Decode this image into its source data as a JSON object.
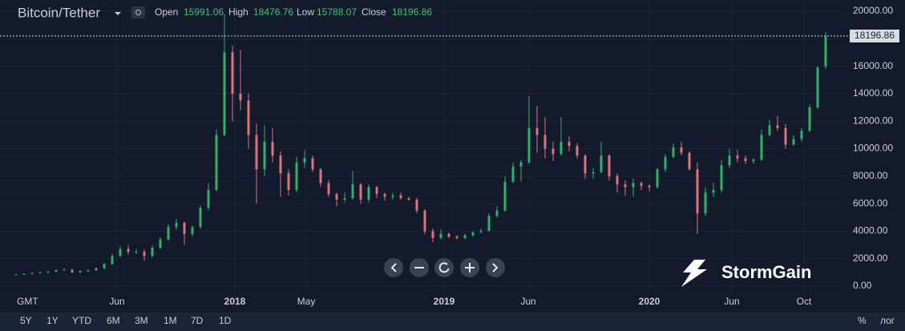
{
  "header": {
    "symbol": "Bitcoin/Tether",
    "labels": [
      "Open",
      "High",
      "Low",
      "Close"
    ]
  },
  "chart_data": {
    "type": "candlestick",
    "up_color": "#2fb36a",
    "down_color": "#e0727b",
    "timezone": "GMT",
    "xlim": [
      -0.5,
      103.5
    ],
    "xticks": [
      {
        "value": 12.6,
        "label": "Jun"
      },
      {
        "value": 27.3,
        "label": "2018"
      },
      {
        "value": 36.2,
        "label": "May"
      },
      {
        "value": 53.4,
        "label": "2019"
      },
      {
        "value": 63.9,
        "label": "Jun"
      },
      {
        "value": 79.0,
        "label": "2020"
      },
      {
        "value": 89.3,
        "label": "Jun"
      },
      {
        "value": 98.3,
        "label": "Oct"
      }
    ],
    "ylim": [
      0,
      20000
    ],
    "yticks": [
      {
        "value": 0,
        "label": "0.00"
      },
      {
        "value": 2000,
        "label": "2000.00"
      },
      {
        "value": 4000,
        "label": "4000.00"
      },
      {
        "value": 6000,
        "label": "6000.00"
      },
      {
        "value": 8000,
        "label": "8000.00"
      },
      {
        "value": 10000,
        "label": "10000.00"
      },
      {
        "value": 12000,
        "label": "12000.00"
      },
      {
        "value": 14000,
        "label": "14000.00"
      },
      {
        "value": 16000,
        "label": "16000.00"
      },
      {
        "value": 18000,
        "label": "18000.00"
      },
      {
        "value": 20000,
        "label": "20000.00"
      }
    ],
    "ohlc": [
      [
        800,
        880,
        780,
        850
      ],
      [
        850,
        930,
        820,
        900
      ],
      [
        900,
        990,
        870,
        950
      ],
      [
        950,
        1050,
        920,
        1000
      ],
      [
        1000,
        1100,
        960,
        1050
      ],
      [
        1050,
        1200,
        1020,
        1150
      ],
      [
        1150,
        1280,
        1120,
        1200
      ],
      [
        1200,
        1250,
        950,
        1000
      ],
      [
        1000,
        1150,
        960,
        1100
      ],
      [
        1100,
        1200,
        1050,
        1150
      ],
      [
        1150,
        1380,
        1120,
        1300
      ],
      [
        1300,
        1700,
        1250,
        1600
      ],
      [
        1600,
        2350,
        1550,
        2200
      ],
      [
        2200,
        2900,
        2100,
        2700
      ],
      [
        2700,
        2980,
        2300,
        2500
      ],
      [
        2500,
        2700,
        2350,
        2500
      ],
      [
        2500,
        2650,
        1850,
        2200
      ],
      [
        2200,
        2950,
        2100,
        2800
      ],
      [
        2800,
        3550,
        2700,
        3400
      ],
      [
        3400,
        4500,
        3300,
        4300
      ],
      [
        4300,
        4900,
        4100,
        4600
      ],
      [
        4600,
        4700,
        3000,
        3800
      ],
      [
        3800,
        4400,
        3600,
        4300
      ],
      [
        4300,
        5850,
        4200,
        5700
      ],
      [
        5700,
        7500,
        5500,
        7000
      ],
      [
        7000,
        11400,
        6900,
        11000
      ],
      [
        11000,
        19800,
        10900,
        17000
      ],
      [
        17000,
        17500,
        12000,
        14000
      ],
      [
        14000,
        17200,
        12800,
        13500
      ],
      [
        13500,
        14000,
        10000,
        11000
      ],
      [
        11000,
        11800,
        6000,
        8500
      ],
      [
        8500,
        11700,
        8000,
        10500
      ],
      [
        10500,
        11500,
        9000,
        9500
      ],
      [
        9500,
        9800,
        6500,
        8200
      ],
      [
        8200,
        8500,
        6600,
        7000
      ],
      [
        7000,
        9400,
        6800,
        9000
      ],
      [
        9000,
        9900,
        8600,
        9300
      ],
      [
        9300,
        9500,
        8300,
        8500
      ],
      [
        8500,
        8600,
        7200,
        7500
      ],
      [
        7500,
        7700,
        6500,
        6700
      ],
      [
        6700,
        6800,
        5800,
        6300
      ],
      [
        6300,
        6800,
        6100,
        6400
      ],
      [
        6400,
        8400,
        6300,
        7400
      ],
      [
        7400,
        7500,
        6000,
        6300
      ],
      [
        6300,
        7400,
        6100,
        7200
      ],
      [
        7200,
        7300,
        6400,
        6700
      ],
      [
        6700,
        6800,
        6200,
        6500
      ],
      [
        6500,
        6800,
        6300,
        6600
      ],
      [
        6600,
        6800,
        6300,
        6400
      ],
      [
        6400,
        6500,
        6200,
        6300
      ],
      [
        6300,
        6400,
        5300,
        5500
      ],
      [
        5500,
        5600,
        3800,
        4000
      ],
      [
        4000,
        4200,
        3200,
        3500
      ],
      [
        3500,
        4100,
        3400,
        3800
      ],
      [
        3800,
        3900,
        3500,
        3600
      ],
      [
        3600,
        3700,
        3400,
        3500
      ],
      [
        3500,
        3800,
        3400,
        3700
      ],
      [
        3700,
        4000,
        3600,
        3900
      ],
      [
        3900,
        4200,
        3900,
        4000
      ],
      [
        4000,
        5300,
        4000,
        5100
      ],
      [
        5100,
        5800,
        5000,
        5500
      ],
      [
        5500,
        8000,
        5400,
        7600
      ],
      [
        7600,
        9000,
        7500,
        8700
      ],
      [
        8700,
        9200,
        7600,
        9000
      ],
      [
        9000,
        13800,
        8900,
        11500
      ],
      [
        11500,
        13100,
        9700,
        11000
      ],
      [
        11000,
        12300,
        9300,
        10000
      ],
      [
        10000,
        10500,
        9100,
        9600
      ],
      [
        9600,
        12300,
        9500,
        10500
      ],
      [
        10500,
        10900,
        9800,
        10200
      ],
      [
        10200,
        10400,
        9300,
        9500
      ],
      [
        9500,
        9600,
        7800,
        8200
      ],
      [
        8200,
        8600,
        7800,
        8300
      ],
      [
        8300,
        10500,
        8200,
        9500
      ],
      [
        9500,
        9600,
        7700,
        8000
      ],
      [
        8000,
        8200,
        6800,
        7400
      ],
      [
        7400,
        7700,
        6600,
        7200
      ],
      [
        7200,
        7800,
        6500,
        7500
      ],
      [
        7500,
        7600,
        7000,
        7300
      ],
      [
        7300,
        7400,
        6900,
        7200
      ],
      [
        7200,
        8600,
        7100,
        8500
      ],
      [
        8500,
        9600,
        8300,
        9400
      ],
      [
        9400,
        10400,
        9300,
        10100
      ],
      [
        10100,
        10500,
        9500,
        9700
      ],
      [
        9700,
        9800,
        8400,
        8500
      ],
      [
        8500,
        9000,
        3800,
        5300
      ],
      [
        5300,
        7200,
        5100,
        6800
      ],
      [
        6800,
        7500,
        6500,
        7000
      ],
      [
        7000,
        9200,
        6800,
        8800
      ],
      [
        8800,
        10000,
        8600,
        9500
      ],
      [
        9500,
        9900,
        9000,
        9300
      ],
      [
        9300,
        9500,
        8900,
        9100
      ],
      [
        9100,
        9300,
        8900,
        9200
      ],
      [
        9200,
        11400,
        9100,
        11000
      ],
      [
        11000,
        12100,
        10900,
        11700
      ],
      [
        11700,
        12400,
        11300,
        11500
      ],
      [
        11500,
        11800,
        10000,
        10300
      ],
      [
        10300,
        11000,
        10200,
        10700
      ],
      [
        10700,
        11500,
        10500,
        11300
      ],
      [
        11300,
        13200,
        11200,
        13000
      ],
      [
        13000,
        16000,
        12900,
        15900
      ],
      [
        15991.06,
        18476.76,
        15788.07,
        18196.86
      ]
    ]
  },
  "toolbar": {
    "ranges": [
      "5Y",
      "1Y",
      "YTD",
      "6M",
      "3M",
      "1M",
      "7D",
      "1D"
    ],
    "options": [
      "%",
      "лог"
    ]
  },
  "brand": "StormGain"
}
